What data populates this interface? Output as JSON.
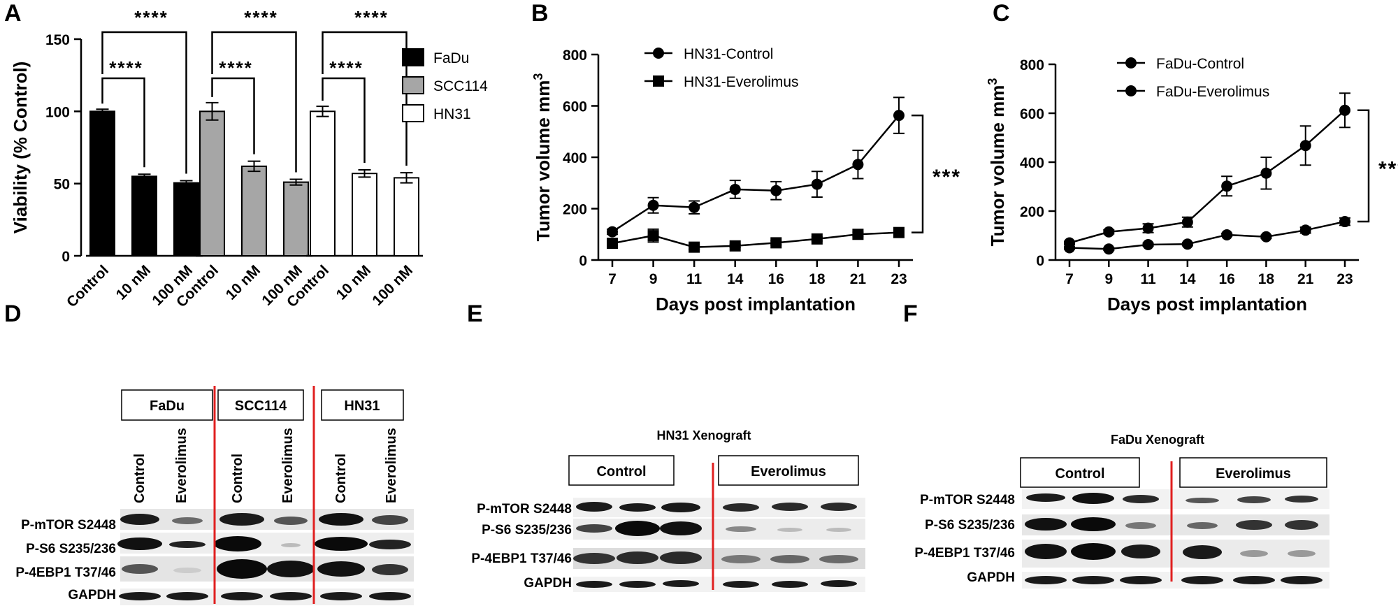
{
  "panels": {
    "A": "A",
    "B": "B",
    "C": "C",
    "D": "D",
    "E": "E",
    "F": "F"
  },
  "chart_data": [
    {
      "panel": "A",
      "type": "bar",
      "ylabel": "Viability (% Control)",
      "ylim": [
        0,
        150
      ],
      "yticks": [
        0,
        50,
        100,
        150
      ],
      "categories": [
        "Control",
        "10 nM",
        "100 nM"
      ],
      "series": [
        {
          "name": "FaDu",
          "values": [
            100,
            55,
            50.5
          ],
          "errors": [
            1.5,
            1.5,
            1.5
          ],
          "color": "#000000"
        },
        {
          "name": "SCC114",
          "values": [
            100,
            62,
            51
          ],
          "errors": [
            6,
            3.5,
            2
          ],
          "color": "#a6a6a6"
        },
        {
          "name": "HN31",
          "values": [
            100,
            57,
            54
          ],
          "errors": [
            3.5,
            2.5,
            3.5
          ],
          "color": "#ffffff"
        }
      ],
      "significance": [
        "****",
        "****",
        "****",
        "****",
        "****",
        "****"
      ],
      "legend": "right"
    },
    {
      "panel": "B",
      "type": "line",
      "xlabel": "Days post implantation",
      "ylabel": "Tumor volume mm",
      "ylabel_sup": "3",
      "x": [
        7,
        9,
        11,
        14,
        16,
        18,
        21,
        23
      ],
      "ylim": [
        0,
        800
      ],
      "yticks": [
        0,
        200,
        400,
        600,
        800
      ],
      "series": [
        {
          "name": "HN31-Control",
          "marker": "circle",
          "values": [
            110,
            213,
            205,
            275,
            270,
            295,
            372,
            563
          ],
          "errors": [
            10,
            30,
            25,
            35,
            35,
            50,
            55,
            70
          ]
        },
        {
          "name": "HN31-Everolimus",
          "marker": "square",
          "values": [
            65,
            95,
            50,
            55,
            67,
            82,
            100,
            107
          ],
          "errors": [
            10,
            25,
            8,
            6,
            8,
            8,
            8,
            10
          ]
        }
      ],
      "significance": "***",
      "legend": "top-left"
    },
    {
      "panel": "C",
      "type": "line",
      "xlabel": "Days post implantation",
      "ylabel": "Tumor volume mm",
      "ylabel_sup": "3",
      "x": [
        7,
        9,
        11,
        14,
        16,
        18,
        21,
        23
      ],
      "ylim": [
        0,
        800
      ],
      "yticks": [
        0,
        200,
        400,
        600,
        800
      ],
      "series": [
        {
          "name": "FaDu-Control",
          "marker": "circle",
          "values": [
            70,
            115,
            130,
            155,
            302,
            355,
            468,
            612
          ],
          "errors": [
            6,
            8,
            18,
            20,
            40,
            65,
            80,
            70
          ]
        },
        {
          "name": "FaDu-Everolimus",
          "marker": "circle",
          "values": [
            50,
            45,
            63,
            65,
            103,
            95,
            122,
            157
          ],
          "errors": [
            5,
            5,
            6,
            6,
            6,
            6,
            12,
            15
          ]
        }
      ],
      "significance": "***",
      "legend": "top-left"
    }
  ],
  "blot_d": {
    "cells": [
      "FaDu",
      "SCC114",
      "HN31"
    ],
    "lanes": [
      "Control",
      "Everolimus"
    ],
    "rows": [
      "P-mTOR S2448",
      "P-S6 S235/236",
      "P-4EBP1 T37/46",
      "GAPDH"
    ]
  },
  "blot_e": {
    "title": "HN31 Xenograft",
    "groups": [
      "Control",
      "Everolimus"
    ],
    "rows": [
      "P-mTOR S2448",
      "P-S6 S235/236",
      "P-4EBP1 T37/46",
      "GAPDH"
    ]
  },
  "blot_f": {
    "title": "FaDu Xenograft",
    "groups": [
      "Control",
      "Everolimus"
    ],
    "rows": [
      "P-mTOR S2448",
      "P-S6 S235/236",
      "P-4EBP1 T37/46",
      "GAPDH"
    ]
  }
}
